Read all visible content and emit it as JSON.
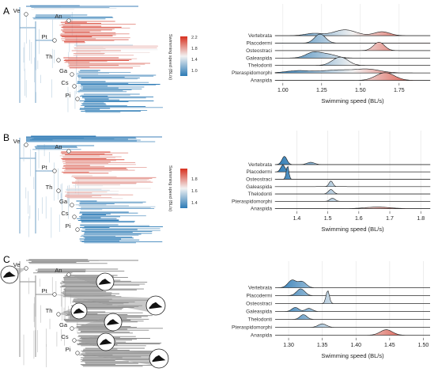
{
  "colors": {
    "blue": "#2c7bb6",
    "light": "#f2f2f2",
    "red": "#d7301f",
    "gray": "#9a9a9a"
  },
  "panels": [
    {
      "label": "A",
      "nodes": [
        "Ve",
        "An",
        "Pt",
        "Th",
        "Ga",
        "Cs",
        "Pi"
      ],
      "colorbar": {
        "title": "Swimming speed (BL/s)",
        "ticks": [
          "2.2",
          "1.8",
          "1.4",
          "1.0"
        ],
        "min": 0.9,
        "max": 2.3
      },
      "xlabel": "Swimming speed (BL/s)"
    },
    {
      "label": "B",
      "nodes": [
        "Ve",
        "An",
        "Pt",
        "Th",
        "Ga",
        "Cs",
        "Pi"
      ],
      "colorbar": {
        "title": "Swimming speed (BL/s)",
        "ticks": [
          "1.8",
          "1.6",
          "1.4"
        ],
        "min": 1.3,
        "max": 1.85
      },
      "xlabel": "Swimming speed (BL/s)"
    },
    {
      "label": "C",
      "nodes": [
        "Ve",
        "An",
        "Pt",
        "Th",
        "Ga",
        "Cs",
        "Pi"
      ],
      "colorbar": null,
      "xlabel": "Swimming speed (BL/s)"
    }
  ],
  "chart_data": [
    {
      "type": "ridgeline",
      "categories": [
        "Vertebrata",
        "Placodermi",
        "Osteostraci",
        "Galeaspida",
        "Thelodonti",
        "Pteraspidomorphi",
        "Anaspida"
      ],
      "xlabel": "Swimming speed (BL/s)",
      "xlim": [
        0.95,
        1.95
      ],
      "xticks": [
        1.0,
        1.25,
        1.5,
        1.75
      ],
      "tick_labels": [
        "1.00",
        "1.25",
        "1.50",
        "1.75"
      ],
      "series": [
        {
          "peaks": [
            [
              1.2,
              0.35,
              0.055
            ],
            [
              1.4,
              0.9,
              0.07
            ],
            [
              1.64,
              0.6,
              0.05
            ]
          ]
        },
        {
          "peaks": [
            [
              1.24,
              1.4,
              0.035
            ]
          ]
        },
        {
          "peaks": [
            [
              1.62,
              1.3,
              0.035
            ]
          ]
        },
        {
          "peaks": [
            [
              1.2,
              0.9,
              0.05
            ],
            [
              1.3,
              0.5,
              0.05
            ]
          ]
        },
        {
          "peaks": [
            [
              1.37,
              1.3,
              0.05
            ]
          ]
        },
        {
          "peaks": [
            [
              1.1,
              0.35,
              0.08
            ],
            [
              1.35,
              0.45,
              0.1
            ],
            [
              1.55,
              0.55,
              0.08
            ]
          ]
        },
        {
          "peaks": [
            [
              1.66,
              1.2,
              0.06
            ]
          ]
        }
      ]
    },
    {
      "type": "ridgeline",
      "categories": [
        "Vertebrata",
        "Placodermi",
        "Osteostraci",
        "Galeaspida",
        "Thelodonti",
        "Pteraspidomorphi",
        "Anaspida"
      ],
      "xlabel": "Swimming speed (BL/s)",
      "xlim": [
        1.33,
        1.83
      ],
      "xticks": [
        1.4,
        1.5,
        1.6,
        1.7,
        1.8
      ],
      "tick_labels": [
        "1.4",
        "1.5",
        "1.6",
        "1.7",
        "1.8"
      ],
      "series": [
        {
          "peaks": [
            [
              1.36,
              1.3,
              0.008
            ],
            [
              1.445,
              0.35,
              0.012
            ]
          ]
        },
        {
          "peaks": [
            [
              1.355,
              1.1,
              0.007
            ]
          ]
        },
        {
          "peaks": [
            [
              1.37,
              2.2,
              0.004
            ]
          ]
        },
        {
          "peaks": [
            [
              1.51,
              0.9,
              0.006
            ]
          ]
        },
        {
          "peaks": [
            [
              1.51,
              0.7,
              0.008
            ]
          ]
        },
        {
          "peaks": [
            [
              1.515,
              0.5,
              0.008
            ]
          ]
        },
        {
          "peaks": [
            [
              1.66,
              0.25,
              0.04
            ]
          ]
        }
      ]
    },
    {
      "type": "ridgeline",
      "categories": [
        "Vertebrata",
        "Placodermi",
        "Osteostraci",
        "Galeaspida",
        "Thelodonti",
        "Pteraspidomorphi",
        "Anaspida"
      ],
      "xlabel": "Swimming speed (BL/s)",
      "xlim": [
        1.28,
        1.51
      ],
      "xticks": [
        1.3,
        1.35,
        1.4,
        1.45,
        1.5
      ],
      "tick_labels": [
        "1.30",
        "1.35",
        "1.40",
        "1.45",
        "1.50"
      ],
      "series": [
        {
          "peaks": [
            [
              1.305,
              1.1,
              0.006
            ],
            [
              1.32,
              0.9,
              0.006
            ]
          ]
        },
        {
          "peaks": [
            [
              1.318,
              1.0,
              0.006
            ]
          ]
        },
        {
          "peaks": [
            [
              1.358,
              1.9,
              0.0025
            ]
          ]
        },
        {
          "peaks": [
            [
              1.31,
              0.6,
              0.005
            ],
            [
              1.33,
              0.45,
              0.005
            ]
          ]
        },
        {
          "peaks": [
            [
              1.322,
              0.7,
              0.005
            ]
          ]
        },
        {
          "peaks": [
            [
              1.35,
              0.5,
              0.006
            ]
          ]
        },
        {
          "peaks": [
            [
              1.445,
              0.8,
              0.009
            ]
          ]
        }
      ]
    }
  ]
}
